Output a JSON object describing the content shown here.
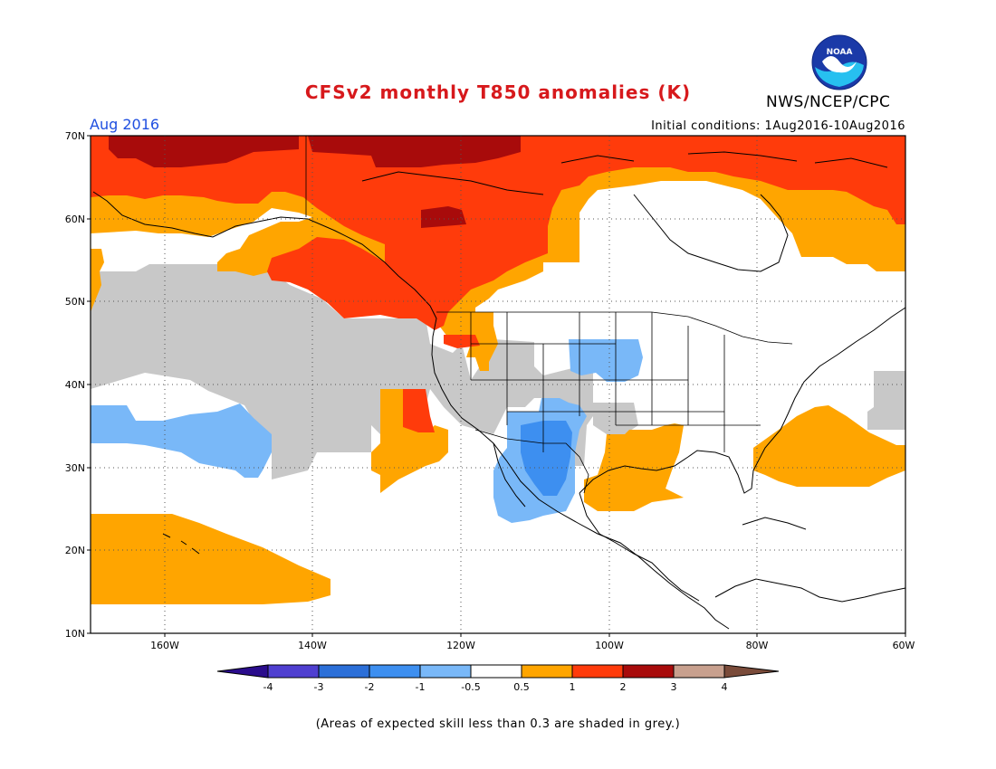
{
  "header": {
    "title": "CFSv2 monthly T850 anomalies (K)",
    "organization": "NWS/NCEP/CPC",
    "logo_text": "NOAA",
    "forecast_month": "Aug 2016",
    "initial_conditions": "Initial conditions: 1Aug2016-10Aug2016"
  },
  "axes": {
    "lat_labels": [
      "70N",
      "60N",
      "50N",
      "40N",
      "30N",
      "20N",
      "10N"
    ],
    "lon_labels": [
      "160W",
      "140W",
      "120W",
      "100W",
      "80W",
      "60W"
    ]
  },
  "colorbar": {
    "tick_labels": [
      "-4",
      "-3",
      "-2",
      "-1",
      "-0.5",
      "0.5",
      "1",
      "2",
      "3",
      "4"
    ],
    "colors": [
      "#2a0c8c",
      "#4f3fd0",
      "#2b6fd8",
      "#3d8ff0",
      "#79b8f8",
      "#ffffff",
      "#ffa500",
      "#ff3b0b",
      "#a80b0b",
      "#c8a08e",
      "#7a4b3a"
    ]
  },
  "footnote": "(Areas of expected skill less than 0.3 are shaded in grey.)",
  "colors": {
    "warm_1": "#ffa500",
    "warm_2": "#ff3b0b",
    "warm_3": "#a80b0b",
    "cool_1": "#79b8f8",
    "cool_2": "#3d8ff0",
    "low_skill_grey": "#c8c8c8"
  }
}
